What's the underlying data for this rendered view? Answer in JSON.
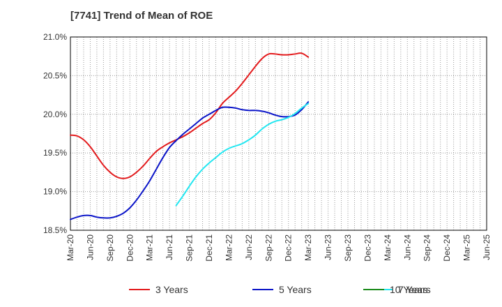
{
  "chart_data": {
    "type": "line",
    "title": "[7741]  Trend of Mean of ROE",
    "xlabel": "",
    "ylabel": "",
    "ylim": [
      18.5,
      21.0
    ],
    "yticks": [
      "18.5%",
      "19.0%",
      "19.5%",
      "20.0%",
      "20.5%",
      "21.0%"
    ],
    "ytick_values": [
      18.5,
      19.0,
      19.5,
      20.0,
      20.5,
      21.0
    ],
    "xticks": [
      "Mar-20",
      "Jun-20",
      "Sep-20",
      "Dec-20",
      "Mar-21",
      "Jun-21",
      "Sep-21",
      "Dec-21",
      "Mar-22",
      "Jun-22",
      "Sep-22",
      "Dec-22",
      "Mar-23",
      "Jun-23",
      "Sep-23",
      "Dec-23",
      "Mar-24",
      "Jun-24",
      "Sep-24",
      "Dec-24",
      "Mar-25",
      "Jun-25"
    ],
    "grid": true,
    "legend_position": "bottom",
    "series": [
      {
        "name": "3 Years",
        "color": "#e31a1c",
        "values": [
          19.73,
          19.72,
          19.67,
          19.58,
          19.46,
          19.34,
          19.25,
          19.19,
          19.17,
          19.19,
          19.25,
          19.33,
          19.43,
          19.52,
          19.58,
          19.63,
          19.67,
          19.71,
          19.76,
          19.82,
          19.88,
          19.93,
          20.02,
          20.14,
          20.22,
          20.3,
          20.4,
          20.51,
          20.62,
          20.72,
          20.78,
          20.78,
          20.77,
          20.77,
          20.78,
          20.79,
          20.74
        ]
      },
      {
        "name": "5 Years",
        "color": "#0a14c8",
        "values": [
          18.64,
          18.67,
          18.69,
          18.69,
          18.67,
          18.66,
          18.66,
          18.68,
          18.72,
          18.79,
          18.89,
          19.01,
          19.14,
          19.29,
          19.44,
          19.57,
          19.66,
          19.74,
          19.81,
          19.88,
          19.95,
          20.0,
          20.05,
          20.09,
          20.09,
          20.08,
          20.06,
          20.05,
          20.05,
          20.04,
          20.02,
          19.99,
          19.97,
          19.97,
          19.99,
          20.06,
          20.16
        ]
      },
      {
        "name": "7 Years",
        "color": "#22e6f0",
        "values": [
          null,
          null,
          null,
          null,
          null,
          null,
          null,
          null,
          null,
          null,
          null,
          null,
          null,
          null,
          null,
          null,
          18.82,
          18.94,
          19.07,
          19.19,
          19.29,
          19.37,
          19.44,
          19.51,
          19.56,
          19.59,
          19.62,
          19.67,
          19.73,
          19.81,
          19.87,
          19.91,
          19.93,
          19.96,
          20.01,
          20.08,
          20.14
        ]
      },
      {
        "name": "10 Years",
        "color": "#1a8a1a",
        "values": []
      }
    ]
  }
}
